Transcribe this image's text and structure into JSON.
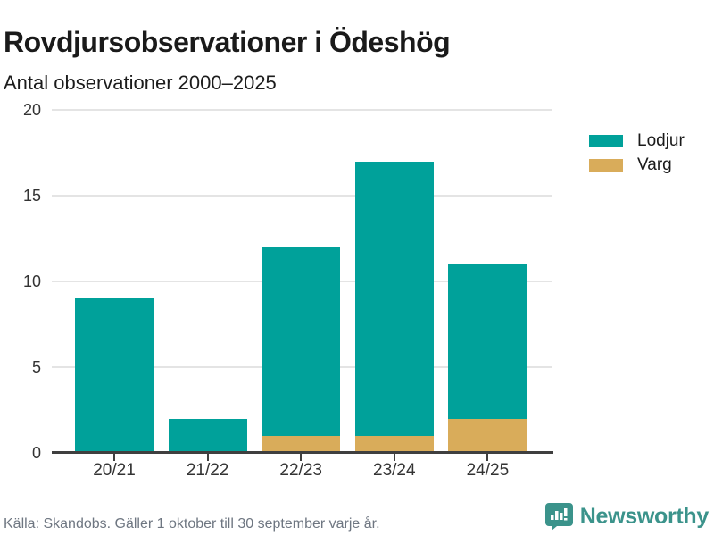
{
  "title": "Rovdjursobservationer i Ödeshög",
  "subtitle": "Antal observationer 2000–2025",
  "legend": [
    {
      "label": "Lodjur",
      "color": "#00a19a"
    },
    {
      "label": "Varg",
      "color": "#d9ac5a"
    }
  ],
  "footer": {
    "source": "Källa: Skandobs. Gäller 1 oktober till 30 september varje år."
  },
  "branding": {
    "name": "Newsworthy",
    "color": "#3b938b",
    "icon": "newsworthy-speech-bubble-chart-icon"
  },
  "colors": {
    "lodjur": "#00a19a",
    "varg": "#d9ac5a",
    "grid": "#e4e4e4",
    "axis": "#3f3f3f",
    "tick_label": "#333333",
    "footer_text": "#6e7681"
  },
  "chart_data": {
    "type": "bar",
    "stacked": true,
    "title": "Rovdjursobservationer i Ödeshög",
    "subtitle": "Antal observationer 2000–2025",
    "categories": [
      "20/21",
      "21/22",
      "22/23",
      "23/24",
      "24/25"
    ],
    "series": [
      {
        "name": "Lodjur",
        "color": "#00a19a",
        "values": [
          9,
          2,
          11,
          16,
          9
        ]
      },
      {
        "name": "Varg",
        "color": "#d9ac5a",
        "values": [
          0,
          0,
          1,
          1,
          2
        ]
      }
    ],
    "stack_order_bottom_to_top": [
      "Varg",
      "Lodjur"
    ],
    "totals": [
      9,
      2,
      12,
      17,
      11
    ],
    "xlabel": "",
    "ylabel": "",
    "ylim": [
      0,
      20
    ],
    "yticks": [
      0,
      5,
      10,
      15,
      20
    ],
    "grid": "horizontal",
    "legend_position": "right-top"
  }
}
